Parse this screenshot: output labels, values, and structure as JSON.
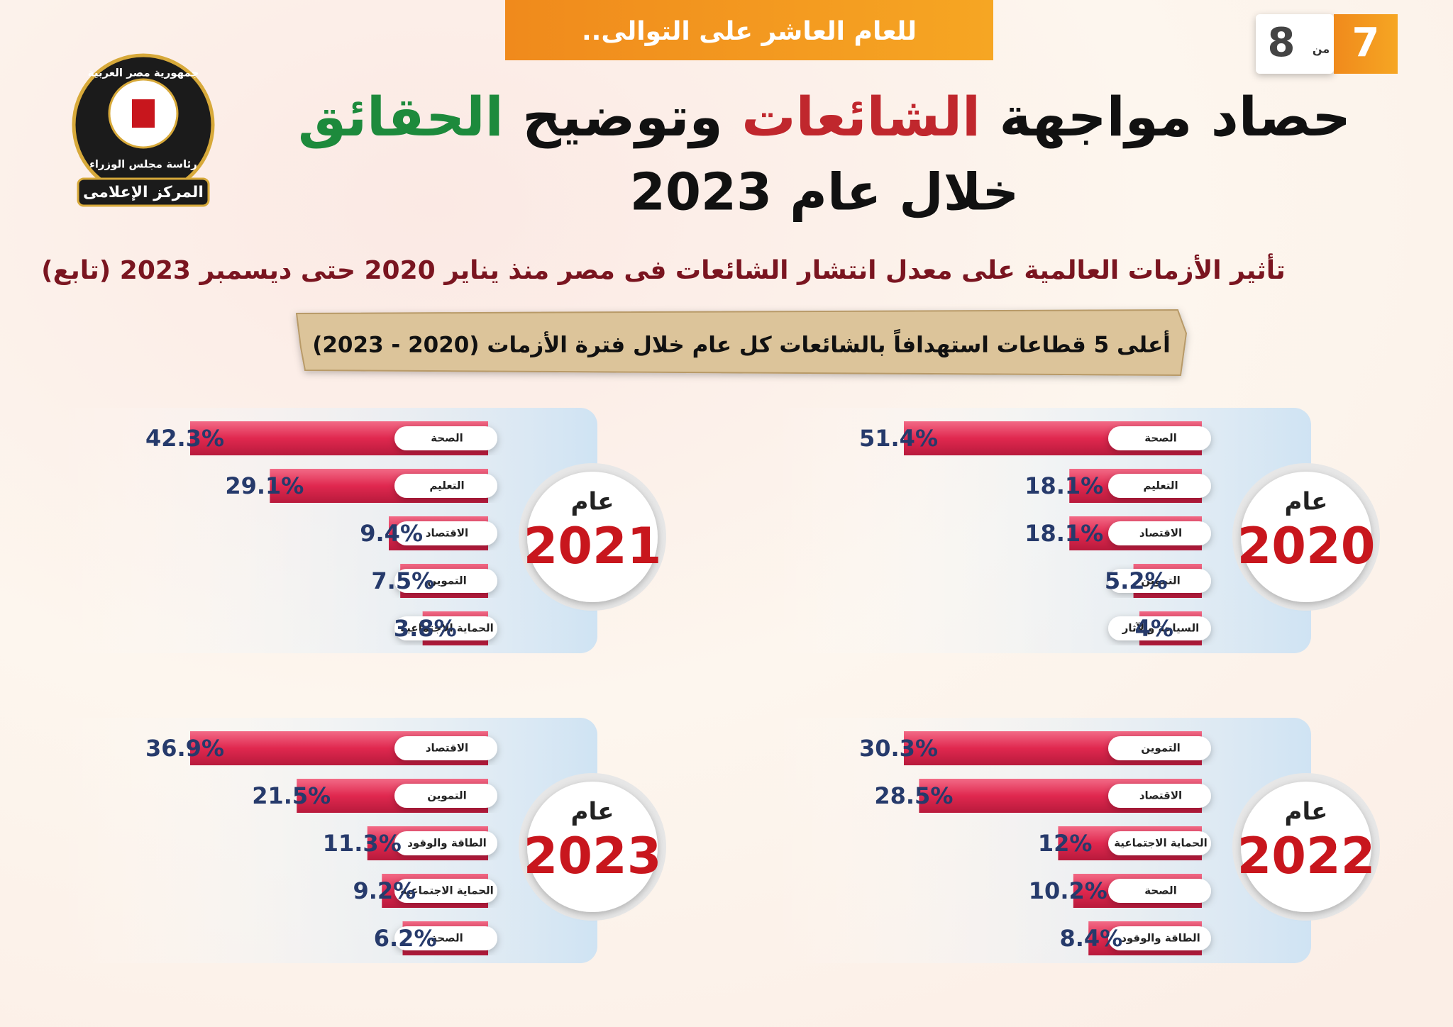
{
  "header": {
    "banner": "للعام العاشر على التوالى..",
    "page_current": "7",
    "page_of": "من",
    "page_total": "8",
    "title_parts": [
      "حصاد مواجهة",
      "الشائعات",
      "وتوضيح",
      "الحقائق"
    ],
    "title_line2": "خلال عام 2023",
    "subtitle": "تأثير الأزمات العالمية على معدل انتشار الشائعات فى مصر منذ يناير 2020  حتى ديسمبر 2023 (تابع)",
    "section_label": "أعلى 5 قطاعات استهدافاً بالشائعات كل عام خلال فترة الأزمات (2020 - 2023)",
    "logo_top": "جمهورية مصر العربية",
    "logo_middle": "رئاسة مجلس الوزراء",
    "logo_bottom": "المركز الإعلامى"
  },
  "chart_data": [
    {
      "type": "bar",
      "year_label": "عام",
      "year": "2020",
      "color": "#e0284f",
      "categories": [
        "الصحة",
        "التعليم",
        "الاقتصاد",
        "التموين",
        "السياحة والآثار"
      ],
      "values": [
        51.4,
        18.1,
        18.1,
        5.2,
        4
      ],
      "value_labels": [
        "51.4%",
        "18.1%",
        "18.1%",
        "5.2%",
        "4%"
      ]
    },
    {
      "type": "bar",
      "year_label": "عام",
      "year": "2021",
      "color": "#e0284f",
      "categories": [
        "الصحة",
        "التعليم",
        "الاقتصاد",
        "التموين",
        "الحماية الاجتماعية"
      ],
      "values": [
        42.3,
        29.1,
        9.4,
        7.5,
        3.8
      ],
      "value_labels": [
        "42.3%",
        "29.1%",
        "9.4%",
        "7.5%",
        "3.8%"
      ]
    },
    {
      "type": "bar",
      "year_label": "عام",
      "year": "2022",
      "color": "#e0284f",
      "categories": [
        "التموين",
        "الاقتصاد",
        "الحماية الاجتماعية",
        "الصحة",
        "الطاقة والوقود"
      ],
      "values": [
        30.3,
        28.5,
        12,
        10.2,
        8.4
      ],
      "value_labels": [
        "30.3%",
        "28.5%",
        "12%",
        "10.2%",
        "8.4%"
      ]
    },
    {
      "type": "bar",
      "year_label": "عام",
      "year": "2023",
      "color": "#e0284f",
      "categories": [
        "الاقتصاد",
        "التموين",
        "الطاقة والوقود",
        "الحماية الاجتماعية",
        "الصحة"
      ],
      "values": [
        36.9,
        21.5,
        11.3,
        9.2,
        6.2
      ],
      "value_labels": [
        "36.9%",
        "21.5%",
        "11.3%",
        "9.2%",
        "6.2%"
      ]
    }
  ]
}
